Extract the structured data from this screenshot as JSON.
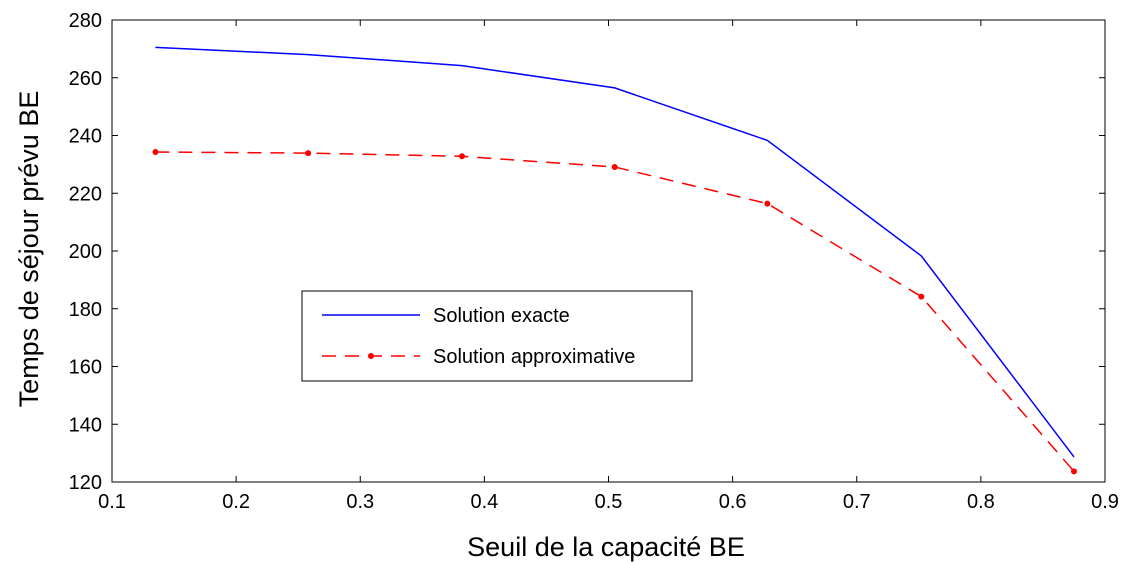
{
  "chart_data": {
    "type": "line",
    "xlabel": "Seuil de la capacité BE",
    "ylabel": "Temps de séjour prévu BE",
    "xlim": [
      0.1,
      0.9
    ],
    "ylim": [
      120,
      280
    ],
    "xticks": [
      "0.1",
      "0.2",
      "0.3",
      "0.4",
      "0.5",
      "0.6",
      "0.7",
      "0.8",
      "0.9"
    ],
    "yticks": [
      "120",
      "140",
      "160",
      "180",
      "200",
      "220",
      "240",
      "260",
      "280"
    ],
    "grid": false,
    "legend_position": "center-left",
    "series": [
      {
        "name": "Solution exacte",
        "color": "#0000ff",
        "line_style": "solid",
        "marker": "none",
        "x": [
          0.135,
          0.258,
          0.382,
          0.505,
          0.628,
          0.752,
          0.875
        ],
        "y": [
          270.5,
          268.0,
          264.2,
          256.5,
          238.3,
          198.3,
          128.7
        ]
      },
      {
        "name": "Solution approximative",
        "color": "#ff0000",
        "line_style": "dashed",
        "marker": "dot",
        "x": [
          0.135,
          0.258,
          0.382,
          0.505,
          0.628,
          0.752,
          0.875
        ],
        "y": [
          234.3,
          233.9,
          232.8,
          229.1,
          216.4,
          184.2,
          123.7
        ]
      }
    ]
  }
}
